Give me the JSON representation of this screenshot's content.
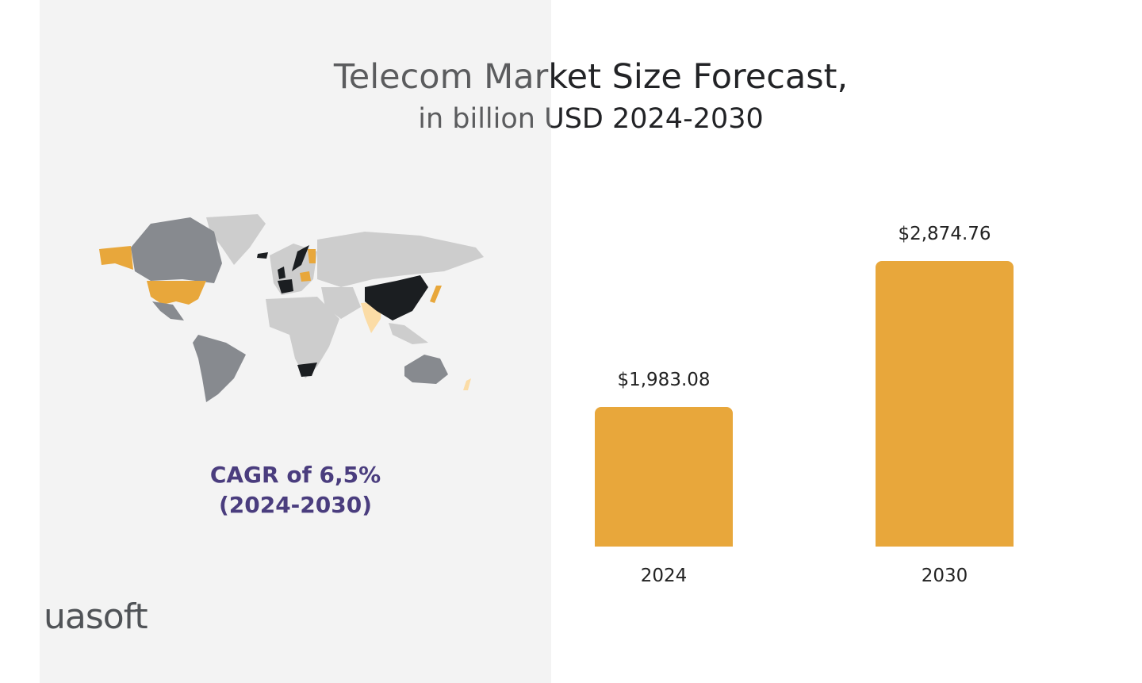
{
  "chart_data": {
    "type": "bar",
    "title": "Telecom Market Size Forecast,",
    "subtitle": "in billion USD 2024-2030",
    "categories": [
      "2024",
      "2030"
    ],
    "values": [
      1983.08,
      2874.76
    ],
    "value_labels": [
      "$1,983.08",
      "$2,874.76"
    ],
    "bar_color": "#e8a73b",
    "grid": false
  },
  "annotation": {
    "line1": "CAGR of 6,5%",
    "line2": "(2024-2030)",
    "color": "#4a3d7e"
  },
  "logo": "uasoft",
  "map": {
    "colors": {
      "high": "#1b1e21",
      "mid_high": "#e8a73b",
      "mid": "#fbdca6",
      "low": "#878a8f",
      "other": "#cdcdcd"
    }
  }
}
